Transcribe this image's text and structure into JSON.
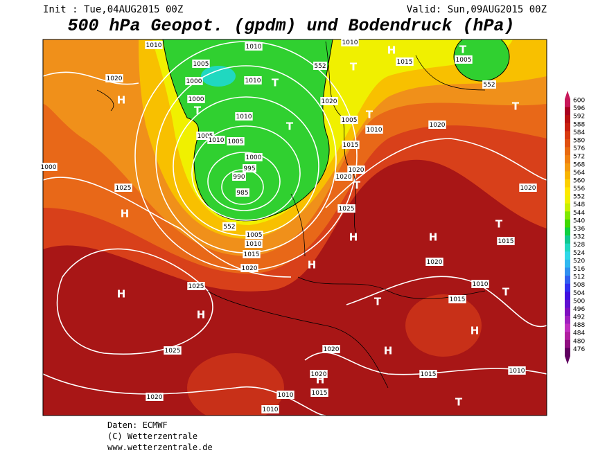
{
  "header": {
    "init": "Init : Tue,04AUG2015 00Z",
    "valid": "Valid: Sun,09AUG2015 00Z",
    "title": "500 hPa Geopot. (gpdm) und Bodendruck (hPa)"
  },
  "legend": {
    "levels": [
      600,
      596,
      592,
      588,
      584,
      580,
      576,
      572,
      568,
      564,
      560,
      556,
      552,
      548,
      544,
      540,
      536,
      532,
      528,
      524,
      520,
      516,
      512,
      508,
      504,
      500,
      496,
      492,
      488,
      484,
      480,
      476
    ],
    "colors": [
      "#c8185a",
      "#a80020",
      "#b81010",
      "#c82010",
      "#d83a10",
      "#e05010",
      "#e86a10",
      "#f08010",
      "#f49a10",
      "#f8b400",
      "#fcd000",
      "#ffe800",
      "#f0f000",
      "#c8f000",
      "#80e800",
      "#40d800",
      "#10d040",
      "#10c890",
      "#20d8c0",
      "#30d8e8",
      "#30b8f0",
      "#3090f0",
      "#3060f0",
      "#3030f0",
      "#4010e0",
      "#6010d0",
      "#8010c0",
      "#a020c0",
      "#c030c0",
      "#b020a0",
      "#901080",
      "#600060"
    ]
  },
  "map": {
    "isobar_labels": [
      "1010",
      "1010",
      "1010",
      "1005",
      "1000",
      "1010",
      "1000",
      "1010",
      "1005",
      "1010",
      "1005",
      "1000",
      "995",
      "990",
      "985",
      "1005",
      "1010",
      "1015",
      "1020",
      "1025",
      "1025",
      "1020",
      "1020",
      "1025",
      "1020",
      "1005",
      "1010",
      "1015",
      "1015",
      "1005",
      "1020",
      "1020",
      "1025",
      "1020",
      "1020",
      "1015",
      "1020",
      "1010",
      "1015",
      "1020",
      "1020",
      "1015",
      "1010",
      "1010",
      "1015",
      "1010",
      "552",
      "552",
      "552",
      "1000"
    ],
    "pressure_centers": [
      "H",
      "T",
      "T",
      "T",
      "H",
      "T",
      "T",
      "T",
      "T",
      "T",
      "H",
      "H",
      "H",
      "H",
      "T",
      "T",
      "H",
      "H",
      "T",
      "H",
      "H",
      "H",
      "T"
    ]
  },
  "footer": {
    "lines": [
      "Daten: ECMWF",
      "(C) Wetterzentrale",
      "www.wetterzentrale.de"
    ]
  }
}
